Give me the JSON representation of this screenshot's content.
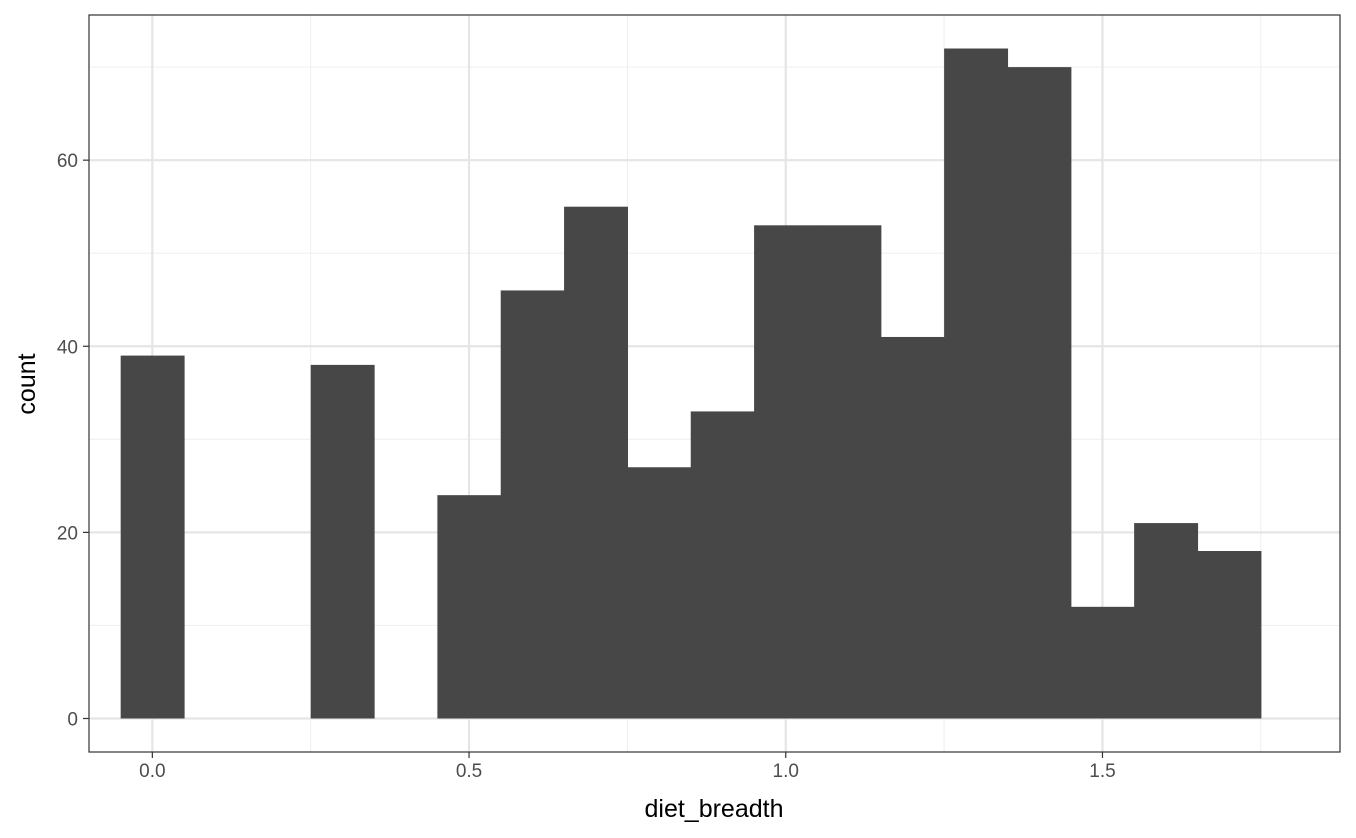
{
  "chart_data": {
    "type": "bar",
    "subtype": "histogram",
    "title": "",
    "xlabel": "diet_breadth",
    "ylabel": "count",
    "xlim": [
      -0.1,
      1.875
    ],
    "ylim": [
      -3.6,
      75.6
    ],
    "binwidth": 0.1,
    "bins": [
      {
        "x": 0.0,
        "count": 39
      },
      {
        "x": 0.3,
        "count": 38
      },
      {
        "x": 0.5,
        "count": 24
      },
      {
        "x": 0.6,
        "count": 46
      },
      {
        "x": 0.7,
        "count": 55
      },
      {
        "x": 0.8,
        "count": 27
      },
      {
        "x": 0.9,
        "count": 33
      },
      {
        "x": 1.0,
        "count": 53
      },
      {
        "x": 1.1,
        "count": 53
      },
      {
        "x": 1.2,
        "count": 41
      },
      {
        "x": 1.3,
        "count": 72
      },
      {
        "x": 1.4,
        "count": 70
      },
      {
        "x": 1.5,
        "count": 12
      },
      {
        "x": 1.6,
        "count": 21
      },
      {
        "x": 1.7,
        "count": 18
      }
    ],
    "x_ticks": [
      {
        "value": 0.0,
        "label": "0.0"
      },
      {
        "value": 0.5,
        "label": "0.5"
      },
      {
        "value": 1.0,
        "label": "1.0"
      },
      {
        "value": 1.5,
        "label": "1.5"
      }
    ],
    "y_ticks": [
      {
        "value": 0,
        "label": "0"
      },
      {
        "value": 20,
        "label": "20"
      },
      {
        "value": 40,
        "label": "40"
      },
      {
        "value": 60,
        "label": "60"
      }
    ],
    "grid": true,
    "theme": "bw",
    "colors": {
      "bar": "#474747",
      "grid_major": "#e5e5e5",
      "grid_minor": "#f0f0f0",
      "border": "#333333"
    }
  }
}
